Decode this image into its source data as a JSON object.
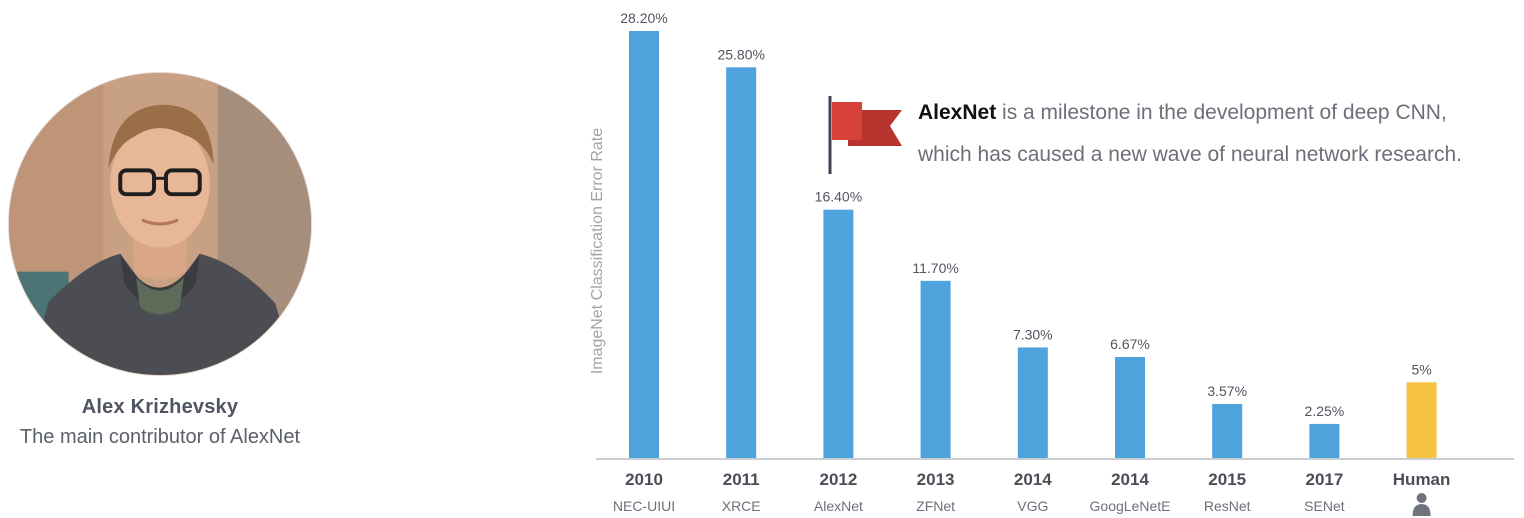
{
  "profile": {
    "name": "Alex Krizhevsky",
    "caption": "The main contributor of AlexNet"
  },
  "annotation": {
    "highlight": "AlexNet",
    "line1_rest": " is a milestone in the development of deep CNN,",
    "line2": "which has caused a new wave of neural network research."
  },
  "colors": {
    "bar": "#4fa3dc",
    "bar_highlight": "#f5c241",
    "flag": "#d9423a",
    "flag_dark": "#b8342e"
  },
  "icons": {
    "human": "user-icon",
    "annotation": "flag-icon"
  },
  "chart_data": {
    "type": "bar",
    "ylabel": "ImageNet Classification Error Rate",
    "categories": [
      "2010",
      "2011",
      "2012",
      "2013",
      "2014",
      "2014",
      "2015",
      "2017",
      "Human"
    ],
    "subcategories": [
      "NEC-UIUI",
      "XRCE",
      "AlexNet",
      "ZFNet",
      "VGG",
      "GoogLeNetE",
      "ResNet",
      "SENet",
      ""
    ],
    "values": [
      28.2,
      25.8,
      16.4,
      11.7,
      7.3,
      6.67,
      3.57,
      2.25,
      5
    ],
    "value_labels": [
      "28.20%",
      "25.80%",
      "16.40%",
      "11.70%",
      "7.30%",
      "6.67%",
      "3.57%",
      "2.25%",
      "5%"
    ],
    "highlight_index": 8,
    "ylim": [
      0,
      28.2
    ],
    "grid": false
  }
}
